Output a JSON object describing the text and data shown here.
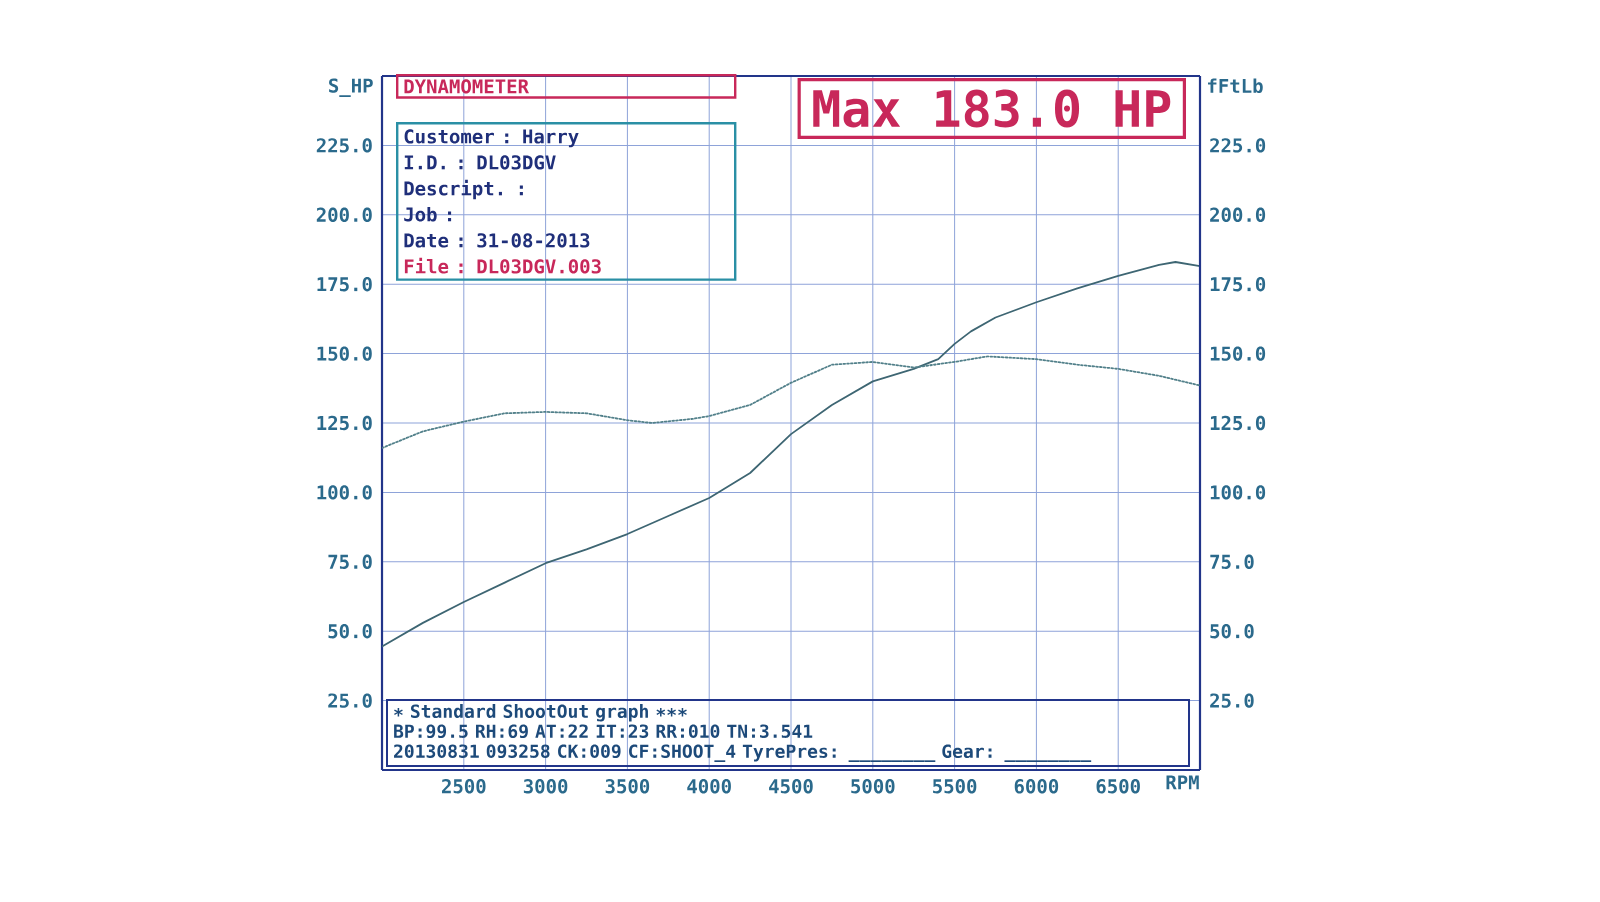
{
  "chart_data": {
    "type": "line",
    "title": "DYNAMOMETER",
    "xlabel": "RPM",
    "ylabel": "S_HP",
    "y2label": "fFtLb",
    "xlim": [
      2000,
      7000
    ],
    "xticks": [
      2500,
      3000,
      3500,
      4000,
      4500,
      5000,
      5500,
      6000,
      6500
    ],
    "ylim": [
      0,
      250
    ],
    "yticks": [
      {
        "value": 25,
        "label": "25.0"
      },
      {
        "value": 50,
        "label": "50.0"
      },
      {
        "value": 75,
        "label": "75.0"
      },
      {
        "value": 100,
        "label": "100.0"
      },
      {
        "value": 125,
        "label": "125.0"
      },
      {
        "value": 150,
        "label": "150.0"
      },
      {
        "value": 175,
        "label": "175.0"
      },
      {
        "value": 200,
        "label": "200.0"
      },
      {
        "value": 225,
        "label": "225.0"
      }
    ],
    "y2lim": [
      0,
      250
    ],
    "y2ticks": [
      {
        "value": 25,
        "label": "25.0"
      },
      {
        "value": 50,
        "label": "50.0"
      },
      {
        "value": 75,
        "label": "75.0"
      },
      {
        "value": 100,
        "label": "100.0"
      },
      {
        "value": 125,
        "label": "125.0"
      },
      {
        "value": 150,
        "label": "150.0"
      },
      {
        "value": 175,
        "label": "175.0"
      },
      {
        "value": 200,
        "label": "200.0"
      },
      {
        "value": 225,
        "label": "225.0"
      }
    ],
    "grid": true,
    "series": [
      {
        "color": "#3e6673",
        "line_style": "solid",
        "x": [
          2000,
          2250,
          2500,
          2750,
          3000,
          3250,
          3500,
          3750,
          4000,
          4250,
          4500,
          4750,
          5000,
          5250,
          5400,
          5500,
          5600,
          5750,
          6000,
          6250,
          6500,
          6750,
          6850,
          7000
        ],
        "values": [
          44.5,
          53,
          60.5,
          67.5,
          74.5,
          79.5,
          85,
          91.5,
          98,
          107,
          121,
          131.5,
          140,
          144.5,
          148,
          153.5,
          158,
          163,
          168.5,
          173.5,
          178,
          182,
          183,
          181.5
        ]
      },
      {
        "color": "#52808a",
        "line_style": "dotted",
        "axis": "y2",
        "x": [
          2000,
          2250,
          2500,
          2750,
          3000,
          3250,
          3500,
          3650,
          3900,
          4000,
          4250,
          4500,
          4750,
          5000,
          5250,
          5500,
          5700,
          6000,
          6250,
          6500,
          6750,
          7000
        ],
        "values": [
          116,
          122,
          125.5,
          128.5,
          129,
          128.5,
          126,
          125,
          126.5,
          127.5,
          131.5,
          139.5,
          146,
          147,
          145,
          147,
          149,
          148,
          146,
          144.5,
          142,
          138.5
        ]
      }
    ],
    "annotations": [
      "Max 183.0 HP",
      "Customer : Harry",
      "I.D. : DL03DGV",
      "Descript. :",
      "Job :",
      "Date : 31-08-2013",
      "File : DL03DGV.003",
      "∗ Standard ShootOut graph ∗∗∗",
      "BP:99.5 RH:69 AT:22 IT:23 RR:010 TN:3.541",
      "20130831 093258 CK:009 CF:SHOOT_4 TyrePres: ________ Gear: ________"
    ]
  }
}
